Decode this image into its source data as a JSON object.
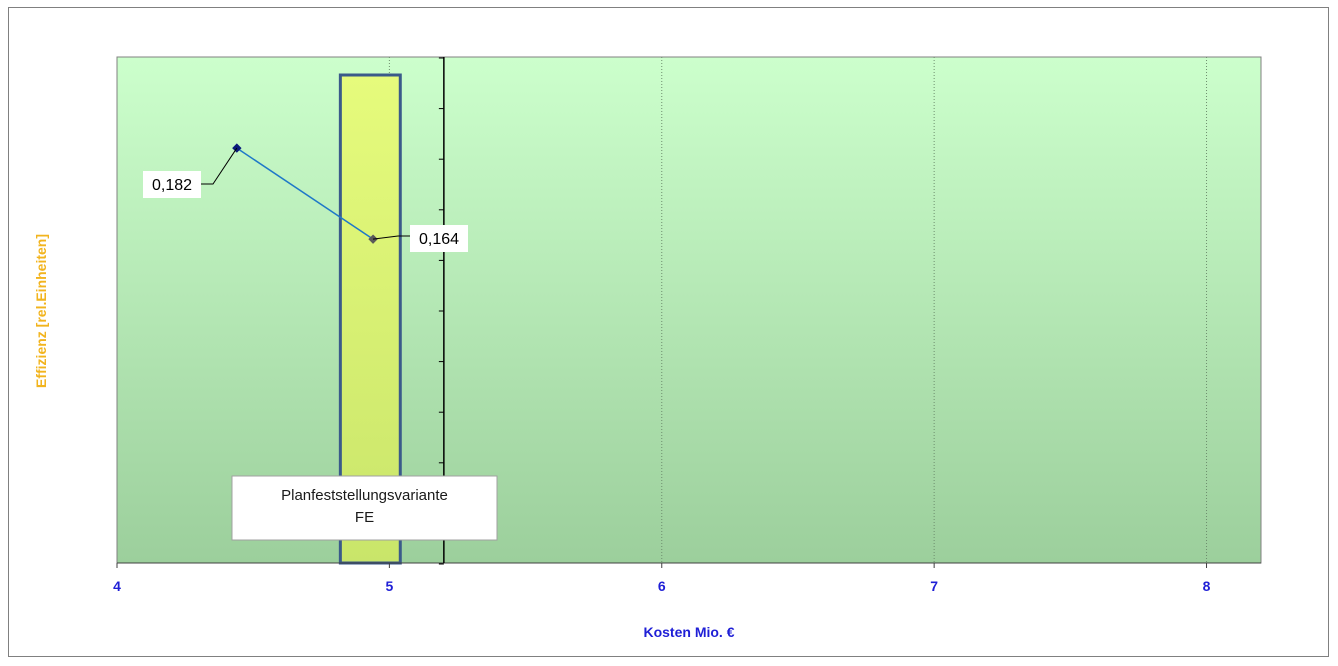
{
  "chart_data": {
    "type": "scatter",
    "title": "",
    "xlabel": "Kosten Mio. €",
    "ylabel": "Effizienz [rel.Einheiten]",
    "xlim": [
      4,
      8.2
    ],
    "ylim": [
      0.1,
      0.2
    ],
    "x_ticks": [
      "4",
      "5",
      "6",
      "7",
      "8"
    ],
    "x_tick_values": [
      4,
      5,
      6,
      7,
      8
    ],
    "grid": {
      "vertical": true,
      "horizontal": false
    },
    "series": [
      {
        "points": [
          {
            "x": 4.44,
            "y": 0.182,
            "label": "0,182"
          },
          {
            "x": 4.94,
            "y": 0.164,
            "label": "0,164"
          }
        ],
        "color": "#1f78c8",
        "marker_colors": [
          "#0a1a7a",
          "#5a5a5a"
        ]
      }
    ],
    "highlight_band": {
      "x_from": 4.82,
      "x_to": 5.04,
      "fill": "#e4f97a",
      "stroke": "#3a5a8a",
      "label_lines": [
        "Planfeststellungsvariante",
        "FE"
      ]
    },
    "secondary_axis_x": 5.2,
    "colors": {
      "plot_bg_top": "#ccffcc",
      "plot_bg_bottom": "#9ccf9c",
      "tick_text": "#1f1fd6",
      "y_title": "#f2b41e"
    }
  }
}
